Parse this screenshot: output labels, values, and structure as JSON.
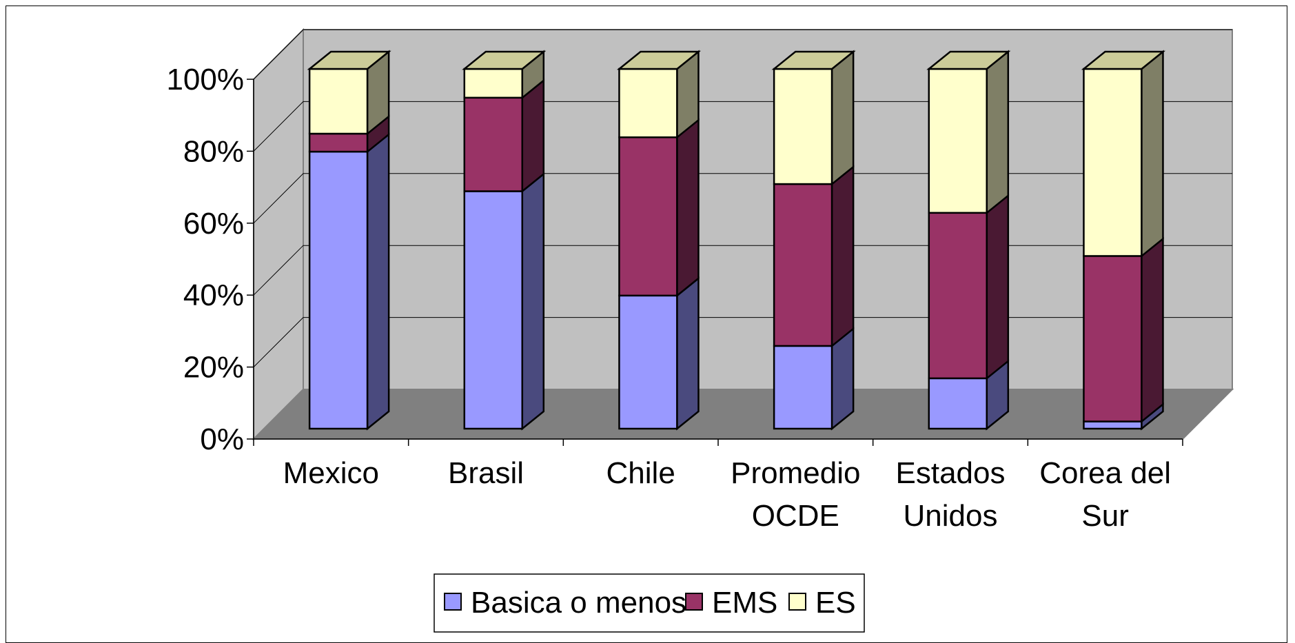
{
  "chart_data": {
    "type": "bar",
    "stacked": true,
    "stacked_percent": true,
    "three_d": true,
    "categories": [
      [
        "Mexico"
      ],
      [
        "Brasil"
      ],
      [
        "Chile"
      ],
      [
        "Promedio",
        "OCDE"
      ],
      [
        "Estados",
        "Unidos"
      ],
      [
        "Corea del",
        "Sur"
      ]
    ],
    "series": [
      {
        "name": "Basica o menos",
        "values": [
          77,
          66,
          37,
          23,
          14,
          2
        ],
        "color": "#9999ff",
        "side": "#4a4a7e"
      },
      {
        "name": "EMS",
        "values": [
          5,
          26,
          44,
          45,
          46,
          46
        ],
        "color": "#993366",
        "side": "#4a1933"
      },
      {
        "name": "ES",
        "values": [
          18,
          8,
          19,
          32,
          40,
          52
        ],
        "color": "#ffffcc",
        "side": "#7f7f66"
      }
    ],
    "y_ticks": [
      "0%",
      "20%",
      "40%",
      "60%",
      "80%",
      "100%"
    ],
    "ylim": [
      0,
      100
    ],
    "grid": true,
    "legend_position": "bottom",
    "colors": {
      "back_wall": "#c0c0c0",
      "floor": "#808080",
      "gridline": "#000000",
      "bar_top": "#cccc99"
    }
  }
}
